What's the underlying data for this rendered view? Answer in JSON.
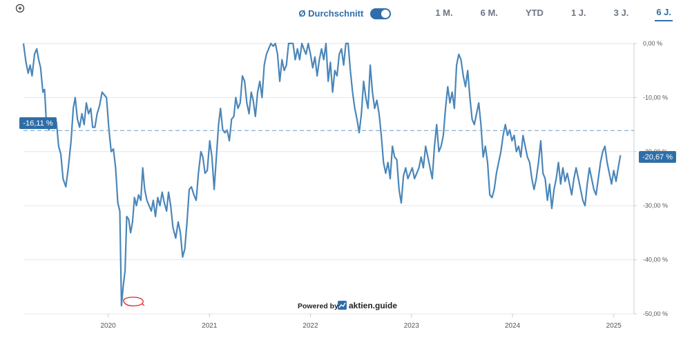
{
  "toolbar": {
    "average_label": "Ø Durchschnitt",
    "average_on": true,
    "ranges": [
      "1 M.",
      "6 M.",
      "YTD",
      "1 J.",
      "3 J.",
      "6 J."
    ],
    "active_range": "6 J."
  },
  "powered_by": {
    "label": "Powered by",
    "brand": "aktien.guide"
  },
  "colors": {
    "line": "#4a86b9",
    "accent": "#2f6ea8",
    "average": "#7ba7cf",
    "annotation": "#e02020"
  },
  "chart_data": {
    "type": "line",
    "title": "",
    "xlabel": "",
    "ylabel": "",
    "y_unit": "%",
    "ylim": [
      -50,
      0
    ],
    "xlim": [
      "2019-03-01",
      "2025-03-15"
    ],
    "grid": true,
    "y_ticks": [
      "0,00 %",
      "-10,00 %",
      "-20,00 %",
      "-30,00 %",
      "-40,00 %",
      "-50,00 %"
    ],
    "y_tick_values": [
      0,
      -10,
      -20,
      -30,
      -40,
      -50
    ],
    "x_ticks": [
      "2020",
      "2021",
      "2022",
      "2023",
      "2024",
      "2025"
    ],
    "x_tick_dates": [
      "2020-01-01",
      "2021-01-01",
      "2022-01-01",
      "2023-01-01",
      "2024-01-01",
      "2025-01-01"
    ],
    "average": {
      "value": -16.11,
      "label": "-16,11 %"
    },
    "last_value": {
      "value": -20.67,
      "label": "-20,67 %"
    },
    "series": [
      {
        "points": [
          [
            "2019-03-01",
            0
          ],
          [
            "2019-03-10",
            -3.5
          ],
          [
            "2019-03-18",
            -5.5
          ],
          [
            "2019-03-25",
            -4
          ],
          [
            "2019-04-01",
            -6
          ],
          [
            "2019-04-10",
            -2
          ],
          [
            "2019-04-18",
            -1
          ],
          [
            "2019-04-25",
            -3
          ],
          [
            "2019-05-02",
            -4.5
          ],
          [
            "2019-05-10",
            -9
          ],
          [
            "2019-05-16",
            -8.5
          ],
          [
            "2019-05-22",
            -14
          ],
          [
            "2019-06-01",
            -16
          ],
          [
            "2019-06-10",
            -14.5
          ],
          [
            "2019-06-20",
            -15.5
          ],
          [
            "2019-06-28",
            -14.5
          ],
          [
            "2019-07-06",
            -19
          ],
          [
            "2019-07-14",
            -20.5
          ],
          [
            "2019-07-22",
            -25
          ],
          [
            "2019-08-01",
            -26.5
          ],
          [
            "2019-08-10",
            -23
          ],
          [
            "2019-08-20",
            -18
          ],
          [
            "2019-08-28",
            -12
          ],
          [
            "2019-09-04",
            -10
          ],
          [
            "2019-09-12",
            -14
          ],
          [
            "2019-09-20",
            -15.5
          ],
          [
            "2019-09-28",
            -13
          ],
          [
            "2019-10-06",
            -15
          ],
          [
            "2019-10-14",
            -11
          ],
          [
            "2019-10-22",
            -13
          ],
          [
            "2019-10-30",
            -12
          ],
          [
            "2019-11-06",
            -15.5
          ],
          [
            "2019-11-14",
            -15.5
          ],
          [
            "2019-11-22",
            -13
          ],
          [
            "2019-12-01",
            -11.5
          ],
          [
            "2019-12-10",
            -9
          ],
          [
            "2019-12-18",
            -9.5
          ],
          [
            "2019-12-26",
            -10
          ],
          [
            "2020-01-04",
            -16
          ],
          [
            "2020-01-12",
            -20
          ],
          [
            "2020-01-20",
            -19.5
          ],
          [
            "2020-01-28",
            -23
          ],
          [
            "2020-02-05",
            -29.5
          ],
          [
            "2020-02-12",
            -31
          ],
          [
            "2020-02-18",
            -48.5
          ],
          [
            "2020-02-24",
            -45
          ],
          [
            "2020-03-02",
            -42
          ],
          [
            "2020-03-08",
            -32
          ],
          [
            "2020-03-15",
            -32.5
          ],
          [
            "2020-03-22",
            -35
          ],
          [
            "2020-03-29",
            -33
          ],
          [
            "2020-04-05",
            -28.5
          ],
          [
            "2020-04-12",
            -30
          ],
          [
            "2020-04-20",
            -28
          ],
          [
            "2020-04-28",
            -29
          ],
          [
            "2020-05-05",
            -23
          ],
          [
            "2020-05-12",
            -27
          ],
          [
            "2020-05-20",
            -29
          ],
          [
            "2020-05-28",
            -30
          ],
          [
            "2020-06-05",
            -31
          ],
          [
            "2020-06-12",
            -29
          ],
          [
            "2020-06-20",
            -32
          ],
          [
            "2020-06-28",
            -28.5
          ],
          [
            "2020-07-06",
            -30
          ],
          [
            "2020-07-14",
            -27.5
          ],
          [
            "2020-07-22",
            -29.5
          ],
          [
            "2020-07-30",
            -31
          ],
          [
            "2020-08-06",
            -27.5
          ],
          [
            "2020-08-14",
            -30
          ],
          [
            "2020-08-22",
            -34
          ],
          [
            "2020-09-01",
            -36
          ],
          [
            "2020-09-10",
            -33
          ],
          [
            "2020-09-18",
            -35
          ],
          [
            "2020-09-26",
            -39.5
          ],
          [
            "2020-10-04",
            -38
          ],
          [
            "2020-10-12",
            -33
          ],
          [
            "2020-10-20",
            -27
          ],
          [
            "2020-10-28",
            -26.5
          ],
          [
            "2020-11-06",
            -28
          ],
          [
            "2020-11-14",
            -29
          ],
          [
            "2020-11-22",
            -24
          ],
          [
            "2020-12-01",
            -20
          ],
          [
            "2020-12-08",
            -21
          ],
          [
            "2020-12-16",
            -24
          ],
          [
            "2020-12-24",
            -23.5
          ],
          [
            "2021-01-02",
            -18
          ],
          [
            "2021-01-10",
            -21
          ],
          [
            "2021-01-18",
            -27
          ],
          [
            "2021-01-26",
            -21
          ],
          [
            "2021-02-03",
            -15
          ],
          [
            "2021-02-10",
            -12
          ],
          [
            "2021-02-18",
            -16
          ],
          [
            "2021-02-26",
            -16.5
          ],
          [
            "2021-03-06",
            -16
          ],
          [
            "2021-03-14",
            -18
          ],
          [
            "2021-03-22",
            -14
          ],
          [
            "2021-03-30",
            -13.5
          ],
          [
            "2021-04-06",
            -10
          ],
          [
            "2021-04-14",
            -12
          ],
          [
            "2021-04-22",
            -11
          ],
          [
            "2021-04-30",
            -6
          ],
          [
            "2021-05-08",
            -7
          ],
          [
            "2021-05-16",
            -11
          ],
          [
            "2021-05-24",
            -13
          ],
          [
            "2021-06-01",
            -9
          ],
          [
            "2021-06-08",
            -10.5
          ],
          [
            "2021-06-16",
            -13.5
          ],
          [
            "2021-06-24",
            -9
          ],
          [
            "2021-07-02",
            -7
          ],
          [
            "2021-07-10",
            -10
          ],
          [
            "2021-07-18",
            -4
          ],
          [
            "2021-07-26",
            -2
          ],
          [
            "2021-08-03",
            -1
          ],
          [
            "2021-08-11",
            0
          ],
          [
            "2021-08-19",
            -0.5
          ],
          [
            "2021-08-27",
            0
          ],
          [
            "2021-09-04",
            -2
          ],
          [
            "2021-09-12",
            -7
          ],
          [
            "2021-09-20",
            -3
          ],
          [
            "2021-09-28",
            -5
          ],
          [
            "2021-10-06",
            -4
          ],
          [
            "2021-10-14",
            0
          ],
          [
            "2021-10-22",
            0
          ],
          [
            "2021-10-30",
            0
          ],
          [
            "2021-11-07",
            -3
          ],
          [
            "2021-11-15",
            -1
          ],
          [
            "2021-11-23",
            -3
          ],
          [
            "2021-12-01",
            0
          ],
          [
            "2021-12-08",
            -1
          ],
          [
            "2021-12-16",
            -2
          ],
          [
            "2021-12-24",
            0
          ],
          [
            "2022-01-01",
            -2
          ],
          [
            "2022-01-09",
            -4.5
          ],
          [
            "2022-01-17",
            -2.5
          ],
          [
            "2022-01-25",
            -6
          ],
          [
            "2022-02-02",
            -3
          ],
          [
            "2022-02-10",
            -1
          ],
          [
            "2022-02-18",
            -3
          ],
          [
            "2022-02-26",
            0
          ],
          [
            "2022-03-06",
            -7
          ],
          [
            "2022-03-14",
            -3.5
          ],
          [
            "2022-03-22",
            -9
          ],
          [
            "2022-03-30",
            -5
          ],
          [
            "2022-04-07",
            -6
          ],
          [
            "2022-04-15",
            -2
          ],
          [
            "2022-04-23",
            -1
          ],
          [
            "2022-05-01",
            -4
          ],
          [
            "2022-05-09",
            0
          ],
          [
            "2022-05-17",
            0
          ],
          [
            "2022-05-25",
            -5
          ],
          [
            "2022-06-02",
            -9
          ],
          [
            "2022-06-10",
            -12
          ],
          [
            "2022-06-18",
            -14
          ],
          [
            "2022-06-26",
            -16.5
          ],
          [
            "2022-07-04",
            -13
          ],
          [
            "2022-07-12",
            -7
          ],
          [
            "2022-07-20",
            -10
          ],
          [
            "2022-07-28",
            -12
          ],
          [
            "2022-08-05",
            -4
          ],
          [
            "2022-08-13",
            -9
          ],
          [
            "2022-08-21",
            -12
          ],
          [
            "2022-08-29",
            -10.5
          ],
          [
            "2022-09-06",
            -13
          ],
          [
            "2022-09-14",
            -17
          ],
          [
            "2022-09-22",
            -22
          ],
          [
            "2022-09-30",
            -24
          ],
          [
            "2022-10-08",
            -22
          ],
          [
            "2022-10-16",
            -25
          ],
          [
            "2022-10-24",
            -19
          ],
          [
            "2022-11-01",
            -21
          ],
          [
            "2022-11-09",
            -21.5
          ],
          [
            "2022-11-17",
            -27
          ],
          [
            "2022-11-25",
            -29.5
          ],
          [
            "2022-12-03",
            -24.5
          ],
          [
            "2022-12-11",
            -23
          ],
          [
            "2022-12-19",
            -25
          ],
          [
            "2022-12-27",
            -24
          ],
          [
            "2023-01-04",
            -23
          ],
          [
            "2023-01-12",
            -25
          ],
          [
            "2023-01-20",
            -24
          ],
          [
            "2023-01-28",
            -23
          ],
          [
            "2023-02-05",
            -21
          ],
          [
            "2023-02-13",
            -23
          ],
          [
            "2023-02-21",
            -19
          ],
          [
            "2023-03-01",
            -21
          ],
          [
            "2023-03-09",
            -23
          ],
          [
            "2023-03-17",
            -25
          ],
          [
            "2023-03-25",
            -19
          ],
          [
            "2023-04-02",
            -15
          ],
          [
            "2023-04-10",
            -20
          ],
          [
            "2023-04-18",
            -19
          ],
          [
            "2023-04-26",
            -17
          ],
          [
            "2023-05-04",
            -12
          ],
          [
            "2023-05-12",
            -8
          ],
          [
            "2023-05-20",
            -11
          ],
          [
            "2023-05-28",
            -9
          ],
          [
            "2023-06-05",
            -12
          ],
          [
            "2023-06-13",
            -4
          ],
          [
            "2023-06-21",
            -2
          ],
          [
            "2023-06-29",
            -3
          ],
          [
            "2023-07-07",
            -6
          ],
          [
            "2023-07-15",
            -8
          ],
          [
            "2023-07-23",
            -5
          ],
          [
            "2023-07-31",
            -10
          ],
          [
            "2023-08-08",
            -14
          ],
          [
            "2023-08-16",
            -15
          ],
          [
            "2023-08-24",
            -13
          ],
          [
            "2023-09-01",
            -11
          ],
          [
            "2023-09-09",
            -15
          ],
          [
            "2023-09-17",
            -21
          ],
          [
            "2023-09-25",
            -19
          ],
          [
            "2023-10-03",
            -22
          ],
          [
            "2023-10-11",
            -28
          ],
          [
            "2023-10-19",
            -28.5
          ],
          [
            "2023-10-27",
            -27
          ],
          [
            "2023-11-04",
            -24
          ],
          [
            "2023-11-12",
            -22
          ],
          [
            "2023-11-20",
            -20
          ],
          [
            "2023-11-28",
            -17
          ],
          [
            "2023-12-06",
            -15
          ],
          [
            "2023-12-14",
            -17
          ],
          [
            "2023-12-22",
            -16
          ],
          [
            "2023-12-30",
            -18
          ],
          [
            "2024-01-07",
            -17
          ],
          [
            "2024-01-15",
            -20
          ],
          [
            "2024-01-23",
            -19
          ],
          [
            "2024-01-31",
            -21
          ],
          [
            "2024-02-08",
            -17
          ],
          [
            "2024-02-16",
            -19
          ],
          [
            "2024-02-24",
            -21
          ],
          [
            "2024-03-03",
            -22
          ],
          [
            "2024-03-11",
            -25
          ],
          [
            "2024-03-19",
            -27
          ],
          [
            "2024-03-27",
            -25
          ],
          [
            "2024-04-04",
            -22
          ],
          [
            "2024-04-12",
            -18
          ],
          [
            "2024-04-20",
            -24
          ],
          [
            "2024-04-28",
            -25
          ],
          [
            "2024-05-06",
            -29
          ],
          [
            "2024-05-14",
            -26
          ],
          [
            "2024-05-22",
            -30.5
          ],
          [
            "2024-05-30",
            -27
          ],
          [
            "2024-06-07",
            -25
          ],
          [
            "2024-06-15",
            -22
          ],
          [
            "2024-06-23",
            -26
          ],
          [
            "2024-07-01",
            -23
          ],
          [
            "2024-07-09",
            -25.5
          ],
          [
            "2024-07-17",
            -24
          ],
          [
            "2024-07-25",
            -26
          ],
          [
            "2024-08-02",
            -28
          ],
          [
            "2024-08-10",
            -25
          ],
          [
            "2024-08-18",
            -23
          ],
          [
            "2024-08-26",
            -25
          ],
          [
            "2024-09-03",
            -27
          ],
          [
            "2024-09-11",
            -29
          ],
          [
            "2024-09-19",
            -30
          ],
          [
            "2024-09-27",
            -26
          ],
          [
            "2024-10-05",
            -23
          ],
          [
            "2024-10-13",
            -25
          ],
          [
            "2024-10-21",
            -27
          ],
          [
            "2024-10-29",
            -28
          ],
          [
            "2024-11-06",
            -25
          ],
          [
            "2024-11-14",
            -22
          ],
          [
            "2024-11-22",
            -20
          ],
          [
            "2024-11-30",
            -19
          ],
          [
            "2024-12-08",
            -22
          ],
          [
            "2024-12-16",
            -24
          ],
          [
            "2024-12-24",
            -26
          ],
          [
            "2025-01-01",
            -23.5
          ],
          [
            "2025-01-09",
            -25.5
          ],
          [
            "2025-01-17",
            -23
          ],
          [
            "2025-01-25",
            -20.67
          ]
        ]
      }
    ]
  }
}
